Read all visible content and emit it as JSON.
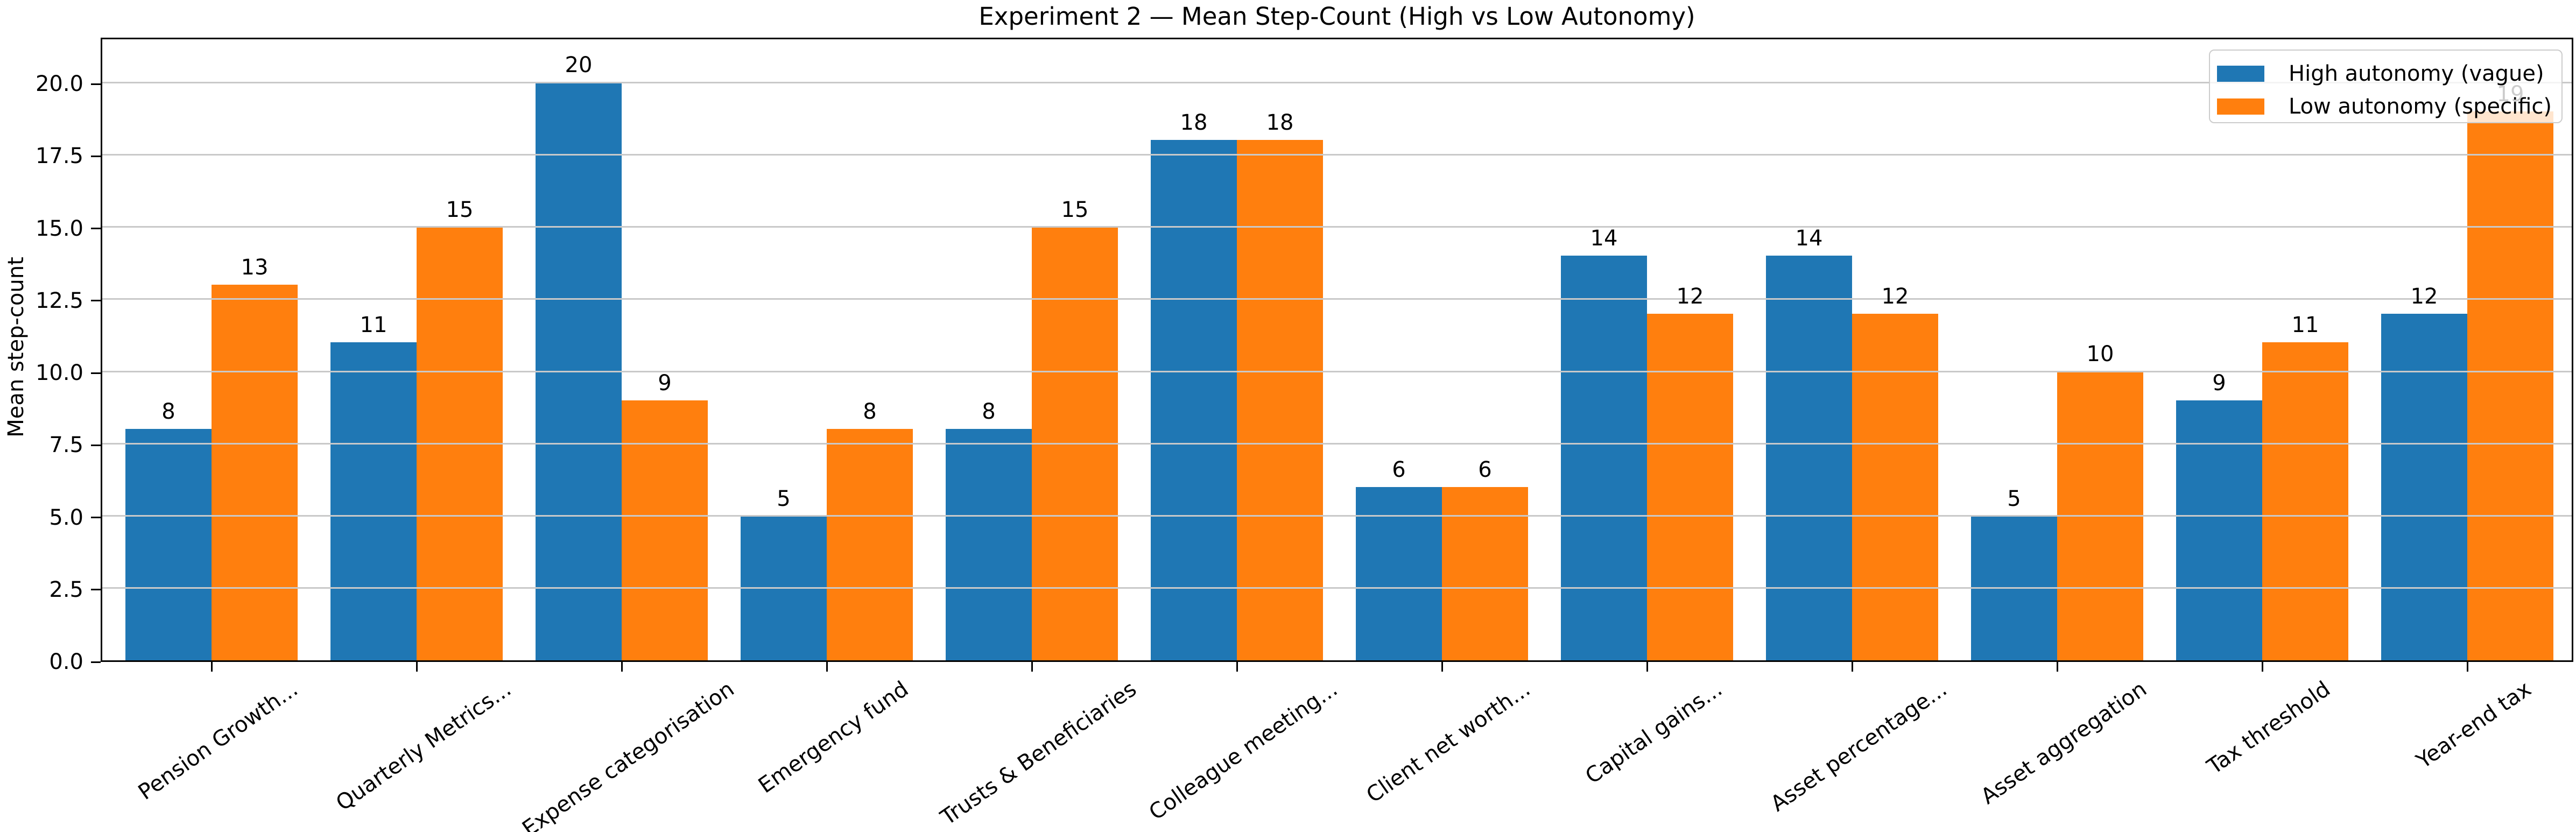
{
  "chart_data": {
    "type": "bar",
    "title": "Experiment 2 — Mean Step-Count (High vs Low Autonomy)",
    "ylabel": "Mean step-count",
    "xlabel": "",
    "categories": [
      "Pension Growth...",
      "Quarterly Metrics...",
      "Expense categorisation",
      "Emergency fund",
      "Trusts & Beneficiaries",
      "Colleague meeting...",
      "Client net worth...",
      "Capital gains...",
      "Asset percentage...",
      "Asset aggregation",
      "Tax threshold",
      "Year-end tax"
    ],
    "series": [
      {
        "name": "High autonomy (vague)",
        "color": "#1f77b4",
        "values": [
          8,
          11,
          20,
          5,
          8,
          18,
          6,
          14,
          14,
          5,
          9,
          12
        ]
      },
      {
        "name": "Low autonomy (specific)",
        "color": "#ff7f0e",
        "values": [
          13,
          15,
          9,
          8,
          15,
          18,
          6,
          12,
          12,
          10,
          11,
          19
        ]
      }
    ],
    "ylim": [
      0,
      21.5
    ],
    "yticks": [
      0,
      2.5,
      5,
      7.5,
      10,
      12.5,
      15,
      17.5,
      20
    ],
    "ytick_labels": [
      "0.0",
      "2.5",
      "5.0",
      "7.5",
      "10.0",
      "12.5",
      "15.0",
      "17.5",
      "20.0"
    ],
    "grid": "horizontal",
    "grid_color": "#c9c9c9",
    "legend_position": "upper right",
    "bar_value_labels": true,
    "x_tick_label_rotation_deg": 35
  },
  "legend": {
    "entries": [
      {
        "label": "High autonomy (vague)",
        "swatch_color": "#1f77b4"
      },
      {
        "label": "Low autonomy (specific)",
        "swatch_color": "#ff7f0e"
      }
    ]
  }
}
